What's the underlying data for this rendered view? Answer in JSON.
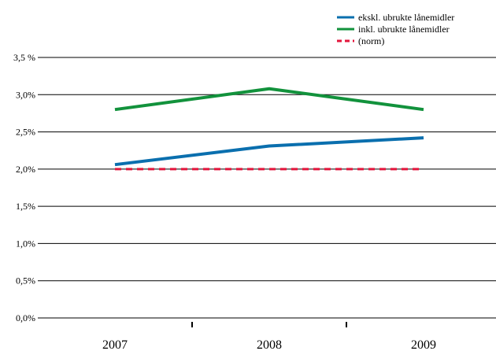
{
  "chart_data": {
    "type": "line",
    "categories": [
      "2007",
      "2008",
      "2009"
    ],
    "yticks": [
      {
        "value": 0.0,
        "label": "0,0%"
      },
      {
        "value": 0.5,
        "label": "0,5%"
      },
      {
        "value": 1.0,
        "label": "1,0%"
      },
      {
        "value": 1.5,
        "label": "1,5%"
      },
      {
        "value": 2.0,
        "label": "2,0%"
      },
      {
        "value": 2.5,
        "label": "2,5%"
      },
      {
        "value": 3.0,
        "label": "3,0%"
      },
      {
        "value": 3.5,
        "label": "3,5 %"
      }
    ],
    "ylim": [
      0,
      3.5
    ],
    "grid": true,
    "legend_position": "top-right",
    "series": [
      {
        "name": "ekskl. ubrukte lånemidler",
        "values": [
          2.06,
          2.31,
          2.42
        ],
        "color": "#0a6fae",
        "style": "solid"
      },
      {
        "name": "inkl. ubrukte lånemidler",
        "values": [
          2.8,
          3.08,
          2.8
        ],
        "color": "#12923c",
        "style": "solid"
      },
      {
        "name": "(norm)",
        "values": [
          2.0,
          2.0,
          2.0
        ],
        "color": "#e3163c",
        "style": "dashed"
      }
    ]
  }
}
